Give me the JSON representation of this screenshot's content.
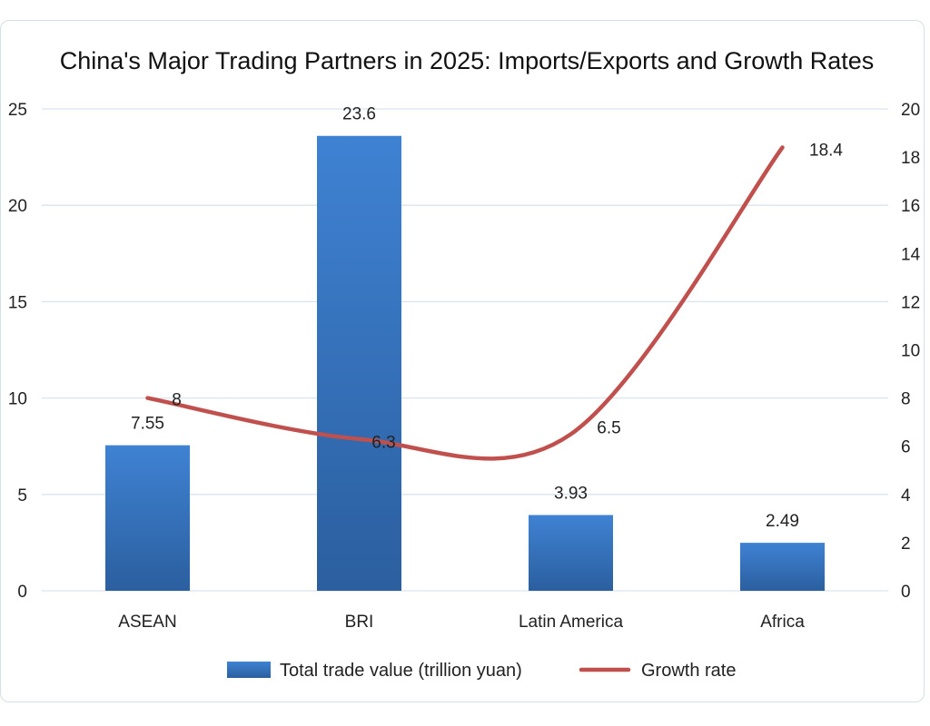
{
  "chart_data": {
    "type": "bar",
    "title": "China's Major Trading Partners in 2025: Imports/Exports and Growth Rates",
    "categories": [
      "ASEAN",
      "BRI",
      "Latin America",
      "Africa"
    ],
    "series": [
      {
        "name": "Total trade value (trillion yuan)",
        "type": "bar",
        "axis": "left",
        "values": [
          7.55,
          23.6,
          3.93,
          2.49
        ],
        "labels": [
          "7.55",
          "23.6",
          "3.93",
          "2.49"
        ]
      },
      {
        "name": "Growth rate",
        "type": "line",
        "axis": "right",
        "values": [
          8,
          6.3,
          6.5,
          18.4
        ],
        "labels": [
          "8",
          "6.3",
          "6.5",
          "18.4"
        ]
      }
    ],
    "y_left": {
      "min": 0,
      "max": 25,
      "ticks": [
        "0",
        "5",
        "10",
        "15",
        "20",
        "25"
      ]
    },
    "y_right": {
      "min": 0,
      "max": 20,
      "ticks": [
        "0",
        "2",
        "4",
        "6",
        "8",
        "10",
        "12",
        "14",
        "16",
        "18",
        "20"
      ]
    },
    "grid": true,
    "legend_position": "bottom",
    "colors": {
      "bar_top": "#3f82d3",
      "bar_bottom": "#2b5f9f",
      "line": "#c0504d",
      "grid": "#d9e4ec"
    }
  }
}
